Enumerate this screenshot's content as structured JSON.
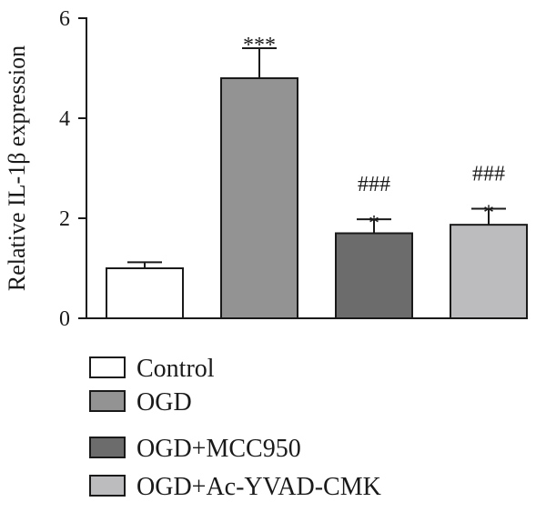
{
  "chart_data": {
    "type": "bar",
    "title": "",
    "xlabel": "",
    "ylabel": "Relative IL-1β expression",
    "ylim": [
      0,
      6
    ],
    "yticks": [
      "0",
      "2",
      "4",
      "6"
    ],
    "categories": [
      "Control",
      "OGD",
      "OGD+MCC950",
      "OGD+Ac-YVAD-CMK"
    ],
    "values": [
      1.0,
      4.8,
      1.7,
      1.87
    ],
    "errors": [
      0.12,
      0.6,
      0.28,
      0.32
    ],
    "annotations": [
      {
        "lines": []
      },
      {
        "lines": [
          "***"
        ]
      },
      {
        "lines": [
          "###",
          "*"
        ]
      },
      {
        "lines": [
          "###",
          "*"
        ]
      }
    ],
    "colors": [
      "#ffffff",
      "#939393",
      "#6c6c6c",
      "#bcbcbe"
    ],
    "legend_position": "bottom",
    "grid": false
  }
}
